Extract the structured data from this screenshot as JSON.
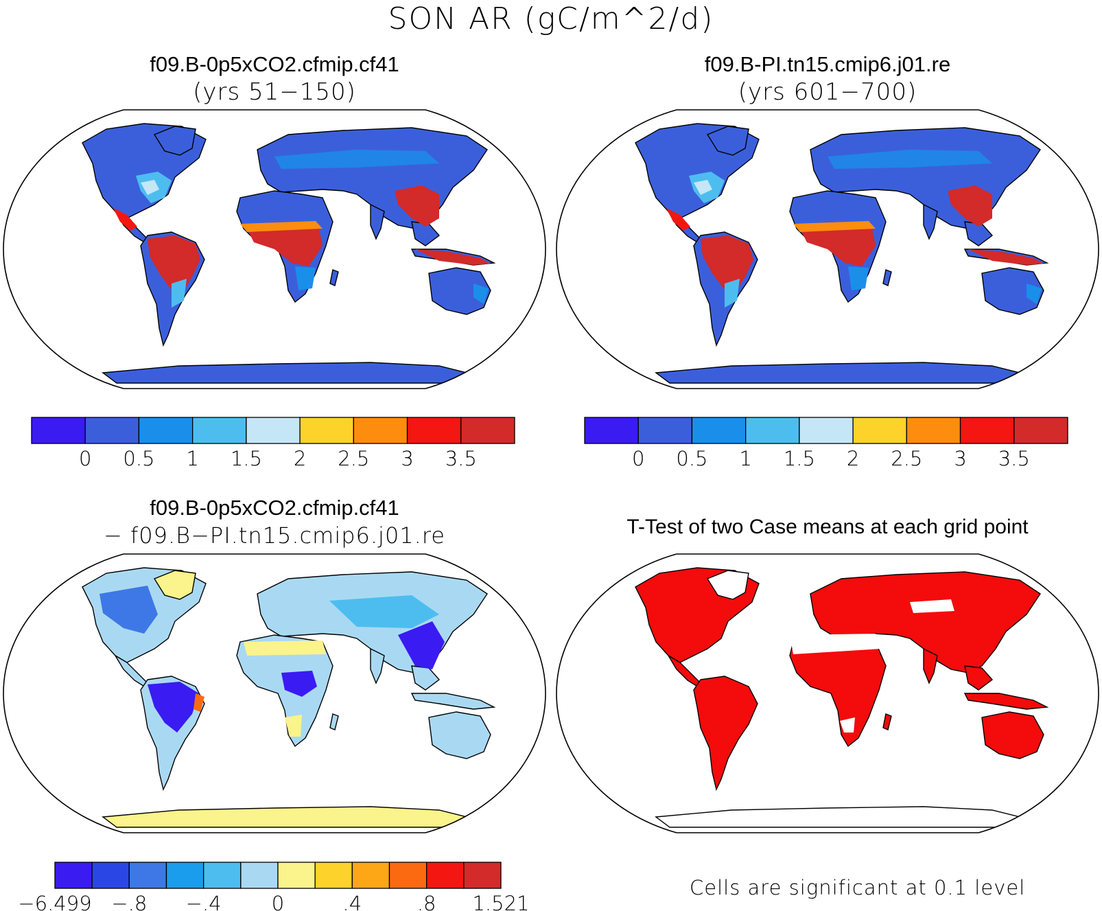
{
  "figure": {
    "title": "SON AR (gC/m^2/d)"
  },
  "panels": [
    {
      "id": "case1",
      "title": "f09.B-0p5xCO2.cfmip.cf41",
      "subtitle": "(yrs 51−150)",
      "colorbar_labels": [
        "0",
        "0.5",
        "1",
        "1.5",
        "2",
        "2.5",
        "3",
        "3.5"
      ],
      "colors": [
        "#3a1bf2",
        "#3b5fdb",
        "#1a8fea",
        "#4dbdf0",
        "#c5e6f7",
        "#fdd22a",
        "#fd8d0e",
        "#f41610",
        "#d32a2a"
      ],
      "dominant_land": "#3b5fdb",
      "tropics": "#d32a2a",
      "antarctica": "#3b5fdb"
    },
    {
      "id": "case2",
      "title": "f09.B-PI.tn15.cmip6.j01.re",
      "subtitle": "(yrs 601−700)",
      "colorbar_labels": [
        "0",
        "0.5",
        "1",
        "1.5",
        "2",
        "2.5",
        "3",
        "3.5"
      ],
      "colors": [
        "#3a1bf2",
        "#3b5fdb",
        "#1a8fea",
        "#4dbdf0",
        "#c5e6f7",
        "#fdd22a",
        "#fd8d0e",
        "#f41610",
        "#d32a2a"
      ],
      "dominant_land": "#3b5fdb",
      "tropics": "#d32a2a",
      "antarctica": "#3b5fdb"
    },
    {
      "id": "diff",
      "title": "f09.B-0p5xCO2.cfmip.cf41",
      "subtitle": "− f09.B−PI.tn15.cmip6.j01.re",
      "colorbar_labels": [
        "−6.499",
        "−.8",
        "−.4",
        "0",
        ".4",
        ".8",
        "1.521"
      ],
      "colors": [
        "#3a1bf2",
        "#2a47e6",
        "#3d78e6",
        "#1a9ded",
        "#4dbdf0",
        "#a9d9f2",
        "#fbf38b",
        "#fdd22a",
        "#fda616",
        "#fb6a10",
        "#f41610",
        "#d32a2a"
      ],
      "dominant_land": "#a9d9f2",
      "tropics": "#3a1bf2",
      "antarctica": "#fbf38b"
    },
    {
      "id": "ttest",
      "title": "T-Test of two Case means at each grid point",
      "footnote": "Cells are significant at 0.1 level",
      "dominant_land": "#f40b0b",
      "antarctica": "#ffffff"
    }
  ]
}
